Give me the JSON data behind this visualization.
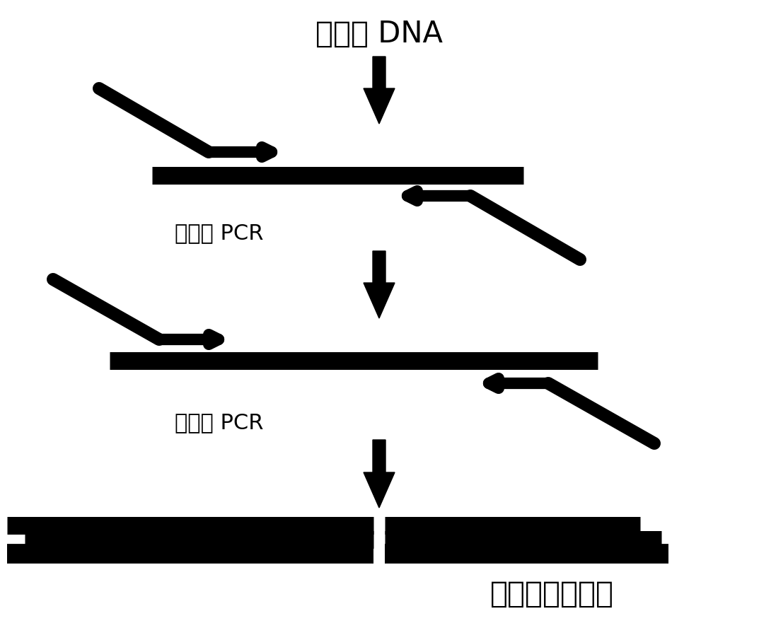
{
  "title_top": "基因组 DNA",
  "label_round1": "第一轮 PCR",
  "label_round2": "第二轮 PCR",
  "label_bottom": "富集的目标片段",
  "bg_color": "#ffffff",
  "line_color": "#000000",
  "fontsize_title": 30,
  "fontsize_label": 22
}
